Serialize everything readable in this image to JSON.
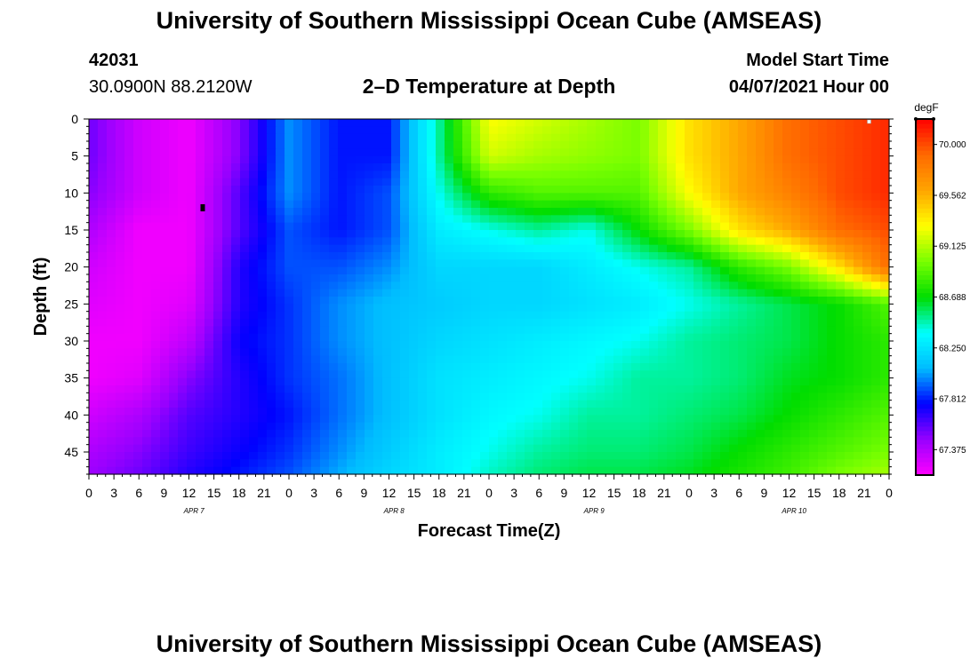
{
  "header": {
    "title": "University of Southern Mississippi Ocean Cube (AMSEAS)",
    "station_id": "42031",
    "coordinates": "30.0900N  88.2120W",
    "plot_title": "2–D Temperature at Depth",
    "model_start_label": "Model Start Time",
    "model_start_value": "04/07/2021 Hour 00"
  },
  "footer": {
    "title": "University of Southern Mississippi Ocean Cube (AMSEAS)"
  },
  "chart_data": {
    "type": "heatmap",
    "xlabel": "Forecast Time(Z)",
    "ylabel": "Depth (ft)",
    "x_tick_labels": [
      "0",
      "3",
      "6",
      "9",
      "12",
      "15",
      "18",
      "21",
      "0",
      "3",
      "6",
      "9",
      "12",
      "15",
      "18",
      "21",
      "0",
      "3",
      "6",
      "9",
      "12",
      "15",
      "18",
      "21",
      "0",
      "3",
      "6",
      "9",
      "12",
      "15",
      "18",
      "21",
      "0"
    ],
    "day_labels": [
      "APR 7",
      "APR 8",
      "APR 9",
      "APR 10"
    ],
    "x_range_hours": [
      0,
      96
    ],
    "y_ticks": [
      0,
      5,
      10,
      15,
      20,
      25,
      30,
      35,
      40,
      45
    ],
    "y_range": [
      0,
      48
    ],
    "y_inverted": true,
    "colorbar": {
      "unit": "degF",
      "tick_values": [
        "70.000",
        "69.562",
        "69.125",
        "68.688",
        "68.250",
        "67.812",
        "67.375"
      ],
      "range": [
        67.156,
        70.219
      ],
      "colors": [
        "#ff00ff",
        "#9900ff",
        "#0000ff",
        "#00bbff",
        "#00ffff",
        "#00dd00",
        "#77ff00",
        "#ffff00",
        "#ffa500",
        "#ff6a00",
        "#ff0000"
      ]
    },
    "depths": [
      0,
      5,
      10,
      15,
      20,
      25,
      30,
      35,
      40,
      45,
      48
    ],
    "times": [
      0,
      6,
      12,
      18,
      24,
      30,
      36,
      42,
      48,
      54,
      60,
      66,
      72,
      78,
      84,
      90,
      96
    ],
    "values": [
      [
        67.55,
        67.3,
        67.2,
        67.5,
        68.0,
        67.8,
        67.8,
        68.5,
        69.3,
        69.2,
        69.1,
        69.0,
        69.4,
        69.6,
        69.9,
        70.0,
        70.1
      ],
      [
        67.55,
        67.3,
        67.2,
        67.5,
        68.0,
        67.8,
        67.8,
        68.5,
        69.2,
        69.1,
        69.05,
        69.0,
        69.4,
        69.6,
        69.9,
        70.0,
        70.1
      ],
      [
        67.5,
        67.3,
        67.2,
        67.6,
        68.0,
        67.8,
        67.9,
        68.4,
        68.8,
        68.9,
        68.9,
        68.9,
        69.3,
        69.6,
        69.8,
        70.0,
        70.1
      ],
      [
        67.4,
        67.2,
        67.2,
        67.6,
        67.9,
        67.8,
        67.9,
        68.3,
        68.4,
        68.5,
        68.4,
        68.7,
        69.0,
        69.4,
        69.6,
        69.9,
        70.0
      ],
      [
        67.3,
        67.2,
        67.2,
        67.7,
        67.9,
        67.9,
        68.0,
        68.2,
        68.2,
        68.2,
        68.3,
        68.4,
        68.5,
        68.8,
        69.0,
        69.4,
        69.9
      ],
      [
        67.25,
        67.2,
        67.25,
        67.7,
        67.85,
        68.0,
        68.1,
        68.15,
        68.2,
        68.2,
        68.25,
        68.3,
        68.4,
        68.5,
        68.6,
        68.7,
        68.9
      ],
      [
        67.2,
        67.2,
        67.35,
        67.75,
        67.85,
        68.0,
        68.1,
        68.2,
        68.25,
        68.3,
        68.35,
        68.4,
        68.5,
        68.55,
        68.6,
        68.7,
        68.8
      ],
      [
        67.2,
        67.25,
        67.5,
        67.7,
        67.85,
        67.95,
        68.1,
        68.25,
        68.3,
        68.35,
        68.4,
        68.5,
        68.5,
        68.55,
        68.65,
        68.7,
        68.8
      ],
      [
        67.3,
        67.4,
        67.6,
        67.7,
        67.8,
        67.95,
        68.1,
        68.25,
        68.35,
        68.4,
        68.5,
        68.5,
        68.55,
        68.6,
        68.7,
        68.8,
        68.9
      ],
      [
        67.4,
        67.5,
        67.65,
        67.75,
        67.85,
        68.0,
        68.15,
        68.3,
        68.4,
        68.5,
        68.55,
        68.55,
        68.6,
        68.7,
        68.8,
        68.9,
        69.0
      ],
      [
        67.45,
        67.55,
        67.7,
        67.8,
        67.9,
        68.05,
        68.2,
        68.3,
        68.45,
        68.55,
        68.6,
        68.6,
        68.65,
        68.75,
        68.85,
        69.0,
        69.1
      ]
    ]
  }
}
